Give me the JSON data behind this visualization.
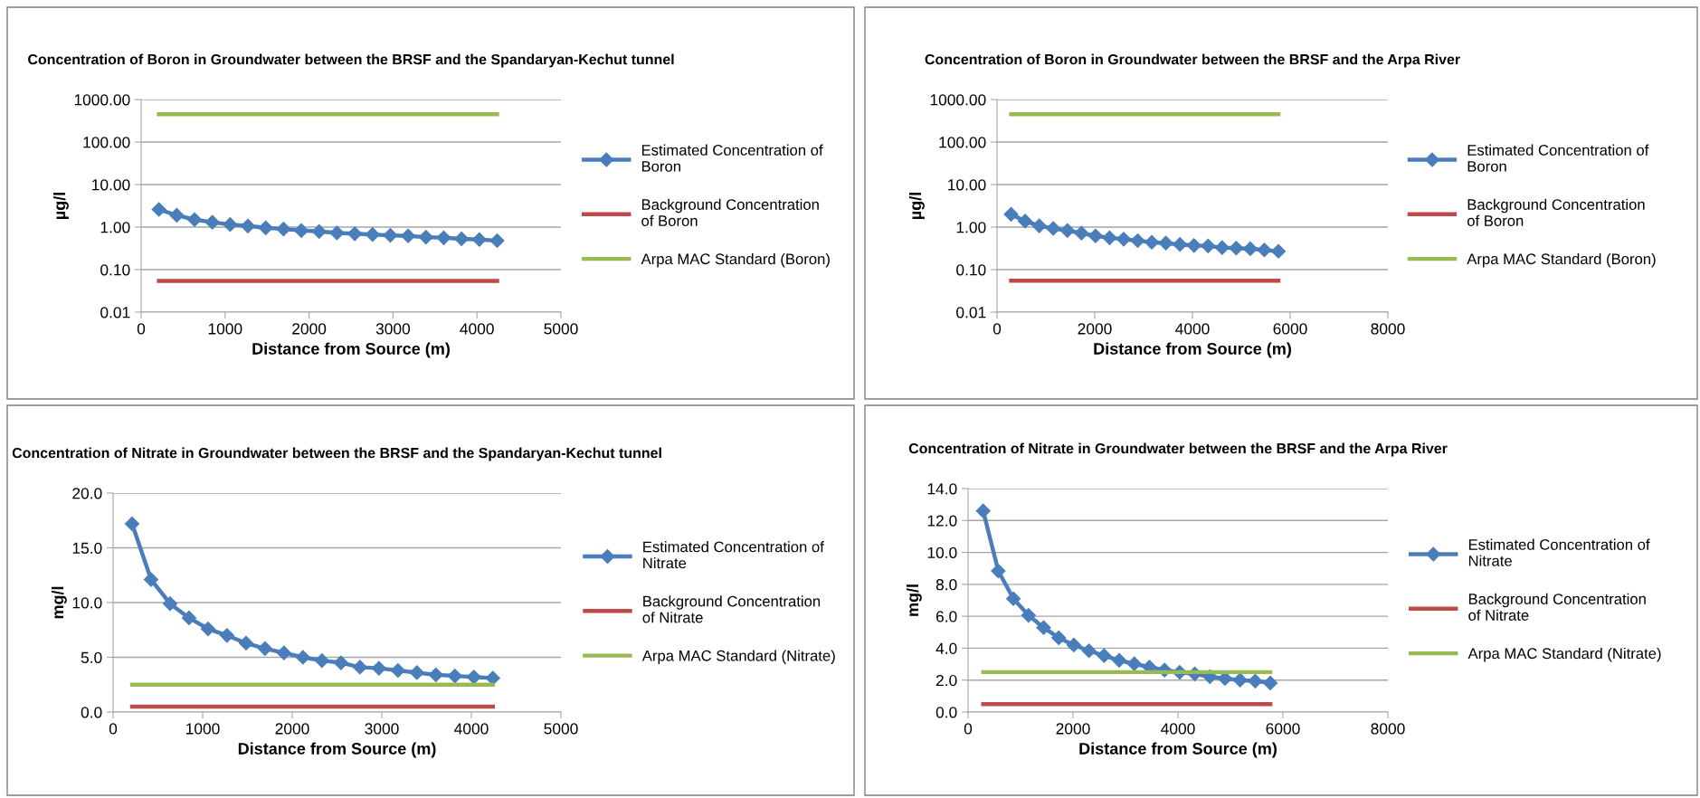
{
  "chart_data": [
    {
      "type": "line",
      "title": "Concentration of Boron in Groundwater between the BRSF and the Spandaryan-Kechut tunnel",
      "xlabel": "Distance from Source (m)",
      "ylabel": "µg/l",
      "log": "y",
      "grid": "y",
      "legend": "right",
      "xlim": [
        0,
        5000
      ],
      "xticks": [
        0,
        1000,
        2000,
        3000,
        4000,
        5000
      ],
      "ylim": [
        0.01,
        1000
      ],
      "yticks": [
        {
          "value": 0.01,
          "label": "0.01"
        },
        {
          "value": 0.1,
          "label": "0.10"
        },
        {
          "value": 1,
          "label": "1.00"
        },
        {
          "value": 10,
          "label": "10.00"
        },
        {
          "value": 100,
          "label": "100.00"
        },
        {
          "value": 1000,
          "label": "1000.00"
        }
      ],
      "x": [
        212,
        424,
        636,
        848,
        1060,
        1272,
        1484,
        1696,
        1908,
        2120,
        2332,
        2544,
        2756,
        2968,
        3180,
        3392,
        3604,
        3816,
        4028,
        4240
      ],
      "series": [
        {
          "name": "Estimated Concentration of Boron",
          "color": "#4a7ebb",
          "marker": "diamond",
          "values": [
            2.6,
            1.9,
            1.5,
            1.3,
            1.15,
            1.06,
            0.96,
            0.9,
            0.83,
            0.79,
            0.73,
            0.7,
            0.67,
            0.64,
            0.62,
            0.58,
            0.56,
            0.53,
            0.51,
            0.48
          ]
        },
        {
          "name": "Background Concentration of Boron",
          "color": "#be4b48",
          "marker": "none",
          "values": [
            0.054,
            0.054,
            0.054,
            0.054,
            0.054,
            0.054,
            0.054,
            0.054,
            0.054,
            0.054,
            0.054,
            0.054,
            0.054,
            0.054,
            0.054,
            0.054,
            0.054,
            0.054,
            0.054,
            0.054
          ]
        },
        {
          "name": "Arpa MAC Standard (Boron)",
          "color": "#98b954",
          "marker": "none",
          "values": [
            450,
            450,
            450,
            450,
            450,
            450,
            450,
            450,
            450,
            450,
            450,
            450,
            450,
            450,
            450,
            450,
            450,
            450,
            450,
            450
          ]
        }
      ]
    },
    {
      "type": "line",
      "title": "Concentration of Boron in Groundwater between the BRSF and the Arpa River",
      "xlabel": "Distance from Source (m)",
      "ylabel": "µg/l",
      "log": "y",
      "grid": "y",
      "legend": "right",
      "xlim": [
        0,
        8000
      ],
      "xticks": [
        0,
        2000,
        4000,
        6000,
        8000
      ],
      "ylim": [
        0.01,
        1000
      ],
      "yticks": [
        {
          "value": 0.01,
          "label": "0.01"
        },
        {
          "value": 0.1,
          "label": "0.10"
        },
        {
          "value": 1,
          "label": "1.00"
        },
        {
          "value": 10,
          "label": "10.00"
        },
        {
          "value": 100,
          "label": "100.00"
        },
        {
          "value": 1000,
          "label": "1000.00"
        }
      ],
      "x": [
        288,
        576,
        864,
        1152,
        1440,
        1728,
        2016,
        2304,
        2592,
        2880,
        3168,
        3456,
        3744,
        4032,
        4320,
        4608,
        4896,
        5184,
        5472,
        5760
      ],
      "series": [
        {
          "name": "Estimated Concentration of Boron",
          "color": "#4a7ebb",
          "marker": "diamond",
          "values": [
            2.0,
            1.38,
            1.07,
            0.93,
            0.83,
            0.72,
            0.62,
            0.56,
            0.52,
            0.48,
            0.44,
            0.42,
            0.39,
            0.37,
            0.36,
            0.33,
            0.32,
            0.31,
            0.29,
            0.27
          ]
        },
        {
          "name": "Background Concentration of Boron",
          "color": "#be4b48",
          "marker": "none",
          "values": [
            0.055,
            0.055,
            0.055,
            0.055,
            0.055,
            0.055,
            0.055,
            0.055,
            0.055,
            0.055,
            0.055,
            0.055,
            0.055,
            0.055,
            0.055,
            0.055,
            0.055,
            0.055,
            0.055,
            0.055
          ]
        },
        {
          "name": "Arpa MAC Standard (Boron)",
          "color": "#98b954",
          "marker": "none",
          "values": [
            450,
            450,
            450,
            450,
            450,
            450,
            450,
            450,
            450,
            450,
            450,
            450,
            450,
            450,
            450,
            450,
            450,
            450,
            450,
            450
          ]
        }
      ]
    },
    {
      "type": "line",
      "title": "Concentration of Nitrate in Groundwater between the BRSF and the Spandaryan-Kechut tunnel",
      "xlabel": "Distance from Source (m)",
      "ylabel": "mg/l",
      "grid": "y",
      "legend": "right",
      "xlim": [
        0,
        5000
      ],
      "xticks": [
        0,
        1000,
        2000,
        3000,
        4000,
        5000
      ],
      "ylim": [
        0,
        20
      ],
      "yticks": [
        {
          "value": 0,
          "label": "0.0"
        },
        {
          "value": 5,
          "label": "5.0"
        },
        {
          "value": 10,
          "label": "10.0"
        },
        {
          "value": 15,
          "label": "15.0"
        },
        {
          "value": 20,
          "label": "20.0"
        }
      ],
      "x": [
        212,
        424,
        636,
        848,
        1060,
        1272,
        1484,
        1696,
        1908,
        2120,
        2332,
        2544,
        2756,
        2968,
        3180,
        3392,
        3604,
        3816,
        4028,
        4240
      ],
      "series": [
        {
          "name": "Estimated Concentration of Nitrate",
          "color": "#4a7ebb",
          "marker": "diamond",
          "values": [
            17.2,
            12.1,
            9.9,
            8.6,
            7.6,
            7.0,
            6.3,
            5.8,
            5.4,
            5.0,
            4.7,
            4.5,
            4.1,
            4.0,
            3.8,
            3.6,
            3.4,
            3.3,
            3.2,
            3.1
          ]
        },
        {
          "name": "Background Concentration of Nitrate",
          "color": "#be4b48",
          "marker": "none",
          "values": [
            0.5,
            0.5,
            0.5,
            0.5,
            0.5,
            0.5,
            0.5,
            0.5,
            0.5,
            0.5,
            0.5,
            0.5,
            0.5,
            0.5,
            0.5,
            0.5,
            0.5,
            0.5,
            0.5,
            0.5
          ]
        },
        {
          "name": "Arpa MAC Standard (Nitrate)",
          "color": "#98b954",
          "marker": "none",
          "values": [
            2.5,
            2.5,
            2.5,
            2.5,
            2.5,
            2.5,
            2.5,
            2.5,
            2.5,
            2.5,
            2.5,
            2.5,
            2.5,
            2.5,
            2.5,
            2.5,
            2.5,
            2.5,
            2.5,
            2.5
          ]
        }
      ]
    },
    {
      "type": "line",
      "title": "Concentration of Nitrate in Groundwater between the BRSF and the Arpa River",
      "xlabel": "Distance from Source (m)",
      "ylabel": "mg/l",
      "grid": "y",
      "legend": "right",
      "xlim": [
        0,
        8000
      ],
      "xticks": [
        0,
        2000,
        4000,
        6000,
        8000
      ],
      "ylim": [
        0,
        14
      ],
      "yticks": [
        {
          "value": 0,
          "label": "0.0"
        },
        {
          "value": 2,
          "label": "2.0"
        },
        {
          "value": 4,
          "label": "4.0"
        },
        {
          "value": 6,
          "label": "6.0"
        },
        {
          "value": 8,
          "label": "8.0"
        },
        {
          "value": 10,
          "label": "10.0"
        },
        {
          "value": 12,
          "label": "12.0"
        },
        {
          "value": 14,
          "label": "14.0"
        }
      ],
      "x": [
        288,
        576,
        864,
        1152,
        1440,
        1728,
        2016,
        2304,
        2592,
        2880,
        3168,
        3456,
        3744,
        4032,
        4320,
        4608,
        4896,
        5184,
        5472,
        5760
      ],
      "series": [
        {
          "name": "Estimated Concentration of Nitrate",
          "color": "#4a7ebb",
          "marker": "diamond",
          "values": [
            12.6,
            8.84,
            7.1,
            6.06,
            5.29,
            4.65,
            4.2,
            3.84,
            3.53,
            3.24,
            3.02,
            2.82,
            2.63,
            2.49,
            2.39,
            2.22,
            2.1,
            2.0,
            1.94,
            1.82
          ]
        },
        {
          "name": "Background Concentration of Nitrate",
          "color": "#be4b48",
          "marker": "none",
          "values": [
            0.5,
            0.5,
            0.5,
            0.5,
            0.5,
            0.5,
            0.5,
            0.5,
            0.5,
            0.5,
            0.5,
            0.5,
            0.5,
            0.5,
            0.5,
            0.5,
            0.5,
            0.5,
            0.5,
            0.5
          ]
        },
        {
          "name": "Arpa MAC Standard (Nitrate)",
          "color": "#98b954",
          "marker": "none",
          "values": [
            2.5,
            2.5,
            2.5,
            2.5,
            2.5,
            2.5,
            2.5,
            2.5,
            2.5,
            2.5,
            2.5,
            2.5,
            2.5,
            2.5,
            2.5,
            2.5,
            2.5,
            2.5,
            2.5,
            2.5
          ]
        }
      ]
    }
  ]
}
